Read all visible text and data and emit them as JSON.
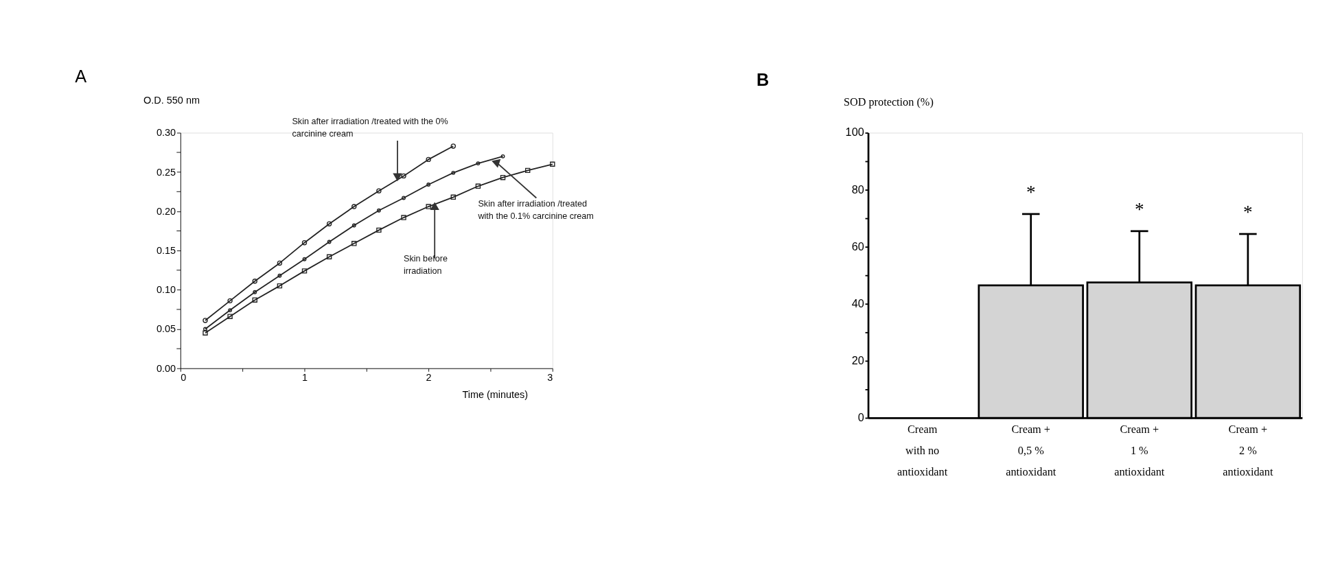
{
  "chart_data": [
    {
      "type": "line",
      "title": "A",
      "ylabel": "O.D. 550 nm",
      "xlabel": "Time (minutes)",
      "xlim": [
        0,
        3
      ],
      "xticks": [
        0,
        {
          "value": 0.5,
          "label": null
        },
        1,
        {
          "value": 1.5,
          "label": null
        },
        2,
        {
          "value": 2.5,
          "label": null
        },
        3
      ],
      "ylim": [
        0,
        0.3
      ],
      "yticks": [
        {
          "value": 0,
          "label": "0.00"
        },
        {
          "value": 0.025,
          "label": null
        },
        {
          "value": 0.05,
          "label": "0.05"
        },
        {
          "value": 0.075,
          "label": null
        },
        {
          "value": 0.1,
          "label": "0.10"
        },
        {
          "value": 0.125,
          "label": null
        },
        {
          "value": 0.15,
          "label": "0.15"
        },
        {
          "value": 0.175,
          "label": null
        },
        {
          "value": 0.2,
          "label": "0.20"
        },
        {
          "value": 0.225,
          "label": null
        },
        {
          "value": 0.25,
          "label": "0.25"
        },
        {
          "value": 0.275,
          "label": null
        },
        {
          "value": 0.3,
          "label": "0.30"
        }
      ],
      "grid": false,
      "line_style": "solid",
      "series": [
        {
          "color": "#222222",
          "marker": "circle",
          "x": [
            0.2,
            0.4,
            0.6,
            0.8,
            1.0,
            1.2,
            1.4,
            1.6,
            1.8,
            2.0,
            2.2
          ],
          "values": [
            0.061,
            0.086,
            0.111,
            0.134,
            0.16,
            0.184,
            0.206,
            0.226,
            0.245,
            0.266,
            0.283
          ]
        },
        {
          "color": "#222222",
          "marker": "circle",
          "x": [
            0.2,
            0.4,
            0.6,
            0.8,
            1.0,
            1.2,
            1.4,
            1.6,
            1.8,
            2.0,
            2.2,
            2.4,
            2.6
          ],
          "values": [
            0.05,
            0.074,
            0.097,
            0.118,
            0.139,
            0.161,
            0.182,
            0.201,
            0.217,
            0.234,
            0.249,
            0.261,
            0.27
          ]
        },
        {
          "color": "#222222",
          "marker": "square",
          "x": [
            0.2,
            0.4,
            0.6,
            0.8,
            1.0,
            1.2,
            1.4,
            1.6,
            1.8,
            2.0,
            2.2,
            2.4,
            2.6,
            2.8,
            3.0
          ],
          "values": [
            0.045,
            0.066,
            0.087,
            0.105,
            0.124,
            0.142,
            0.159,
            0.176,
            0.192,
            0.206,
            0.218,
            0.232,
            0.243,
            0.252,
            0.26
          ]
        }
      ],
      "annotations": [
        {
          "text": "Skin after irradiation /treated with the 0%\ncarcinine cream",
          "x": 1.75,
          "y": 0.245
        },
        {
          "text": "Skin after irradiation /treated\nwith the 0.1% carcinine cream",
          "x": 2.55,
          "y": 0.262
        },
        {
          "text": "Skin before\nirradiation",
          "x": 2.05,
          "y": 0.205
        }
      ]
    },
    {
      "type": "bar",
      "title": "B",
      "ylabel": "SOD protection (%)",
      "categories": [
        "Cream\nwith no\nantioxidant",
        "Cream +\n0,5 %\nantioxidant",
        "Cream +\n1 %\nantioxidant",
        "Cream +\n2 %\nantioxidant"
      ],
      "values": [
        0,
        46.5,
        47.5,
        46.5
      ],
      "color": "#d4d4d4",
      "errors": [
        null,
        [
          46.5,
          71.5
        ],
        [
          47.5,
          65.5
        ],
        [
          46.5,
          64.5
        ]
      ],
      "ylim": [
        0,
        100
      ],
      "yticks": [
        0,
        {
          "value": 10,
          "label": null
        },
        20,
        {
          "value": 30,
          "label": null
        },
        40,
        {
          "value": 50,
          "label": null
        },
        60,
        {
          "value": 70,
          "label": null
        },
        80,
        {
          "value": 90,
          "label": null
        },
        100
      ],
      "grid": false,
      "annotations": [
        "*",
        "*",
        "*"
      ]
    }
  ]
}
